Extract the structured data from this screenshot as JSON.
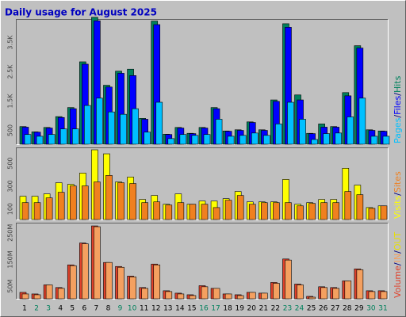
{
  "chart_data": [
    {
      "type": "bar",
      "title": "Daily usage for August 2025",
      "series": [
        {
          "name": "Hits",
          "color": "#00805c",
          "values": [
            630,
            450,
            600,
            970,
            1280,
            2840,
            4360,
            2040,
            2520,
            2590,
            910,
            4230,
            370,
            600,
            400,
            600,
            1280,
            480,
            520,
            790,
            520,
            1540,
            4140,
            1710,
            400,
            720,
            630,
            1790,
            3390,
            520,
            480
          ]
        },
        {
          "name": "Files",
          "color": "#0000ff",
          "values": [
            610,
            440,
            580,
            940,
            1240,
            2760,
            4240,
            1980,
            2450,
            2370,
            880,
            4110,
            360,
            580,
            390,
            580,
            1240,
            470,
            500,
            770,
            500,
            1490,
            4020,
            1540,
            390,
            610,
            610,
            1680,
            3310,
            500,
            470
          ]
        },
        {
          "name": "Pages",
          "color": "#00c0ff",
          "values": [
            360,
            300,
            360,
            550,
            550,
            1350,
            1600,
            1130,
            1050,
            1240,
            440,
            1460,
            220,
            360,
            330,
            360,
            880,
            300,
            330,
            410,
            330,
            720,
            1460,
            880,
            190,
            390,
            410,
            960,
            1600,
            300,
            300
          ]
        }
      ],
      "legend_separator": "/",
      "legend_reverse": true,
      "ylim": [
        0,
        4300
      ],
      "yticks": [
        500,
        {
          "value": 1500,
          "label": "1.5K"
        },
        {
          "value": 2500,
          "label": "2.5K"
        },
        {
          "value": 3500,
          "label": "3.5K"
        }
      ]
    },
    {
      "type": "bar",
      "series": [
        {
          "name": "Visits",
          "color": "#ffff00",
          "values": [
            211,
            211,
            232,
            330,
            316,
            415,
            619,
            584,
            337,
            380,
            183,
            218,
            141,
            232,
            141,
            169,
            169,
            190,
            253,
            162,
            162,
            162,
            359,
            141,
            155,
            183,
            183,
            457,
            309,
            112,
            127
          ]
        },
        {
          "name": "Sites",
          "color": "#f08020",
          "values": [
            155,
            155,
            197,
            246,
            302,
            302,
            337,
            394,
            330,
            323,
            155,
            162,
            134,
            155,
            141,
            141,
            112,
            176,
            218,
            141,
            155,
            155,
            155,
            127,
            148,
            155,
            155,
            253,
            225,
            105,
            127
          ]
        }
      ],
      "legend_separator": "/",
      "legend_reverse": false,
      "ylim": [
        0,
        640
      ],
      "yticks": [
        100,
        300,
        500
      ]
    },
    {
      "type": "bar",
      "categories": [
        "1",
        "2",
        "3",
        "4",
        "5",
        "6",
        "7",
        "8",
        "9",
        "10",
        "11",
        "12",
        "13",
        "14",
        "15",
        "16",
        "17",
        "18",
        "19",
        "20",
        "21",
        "22",
        "23",
        "24",
        "25",
        "26",
        "27",
        "28",
        "29",
        "30",
        "31"
      ],
      "category_colors": [
        "#000000",
        "#00805c",
        "#00805c",
        "#000000",
        "#000000",
        "#000000",
        "#000000",
        "#000000",
        "#00805c",
        "#00805c",
        "#000000",
        "#000000",
        "#000000",
        "#000000",
        "#000000",
        "#00805c",
        "#00805c",
        "#000000",
        "#000000",
        "#000000",
        "#000000",
        "#000000",
        "#00805c",
        "#00805c",
        "#000000",
        "#000000",
        "#000000",
        "#000000",
        "#000000",
        "#00805c",
        "#00805c"
      ],
      "series": [
        {
          "name": "Volume",
          "color": "#e0402a",
          "values": [
            27,
            21,
            55,
            45,
            130,
            212,
            276,
            139,
            124,
            88,
            45,
            133,
            33,
            24,
            18,
            52,
            42,
            21,
            18,
            27,
            24,
            64,
            152,
            58,
            12,
            48,
            45,
            70,
            115,
            33,
            33
          ]
        },
        {
          "name": "IN",
          "color": "#f4a060",
          "values": [
            21,
            18,
            55,
            42,
            127,
            209,
            273,
            139,
            121,
            85,
            42,
            130,
            30,
            21,
            15,
            48,
            42,
            21,
            15,
            27,
            24,
            61,
            148,
            55,
            9,
            45,
            42,
            70,
            112,
            30,
            30
          ]
        },
        {
          "name": "OUT",
          "color": "#e8e000",
          "values": [
            null,
            null,
            null,
            null,
            null,
            null,
            null,
            null,
            null,
            null,
            null,
            null,
            null,
            null,
            null,
            null,
            null,
            null,
            null,
            null,
            null,
            null,
            null,
            null,
            null,
            null,
            null,
            null,
            null,
            null,
            null
          ]
        }
      ],
      "legend_separator": "/",
      "legend_reverse": false,
      "ylim": [
        0,
        288
      ],
      "yticks": [
        {
          "value": 50,
          "label": "50M"
        },
        {
          "value": 150,
          "label": "150M"
        },
        {
          "value": 250,
          "label": "250M"
        }
      ]
    }
  ]
}
